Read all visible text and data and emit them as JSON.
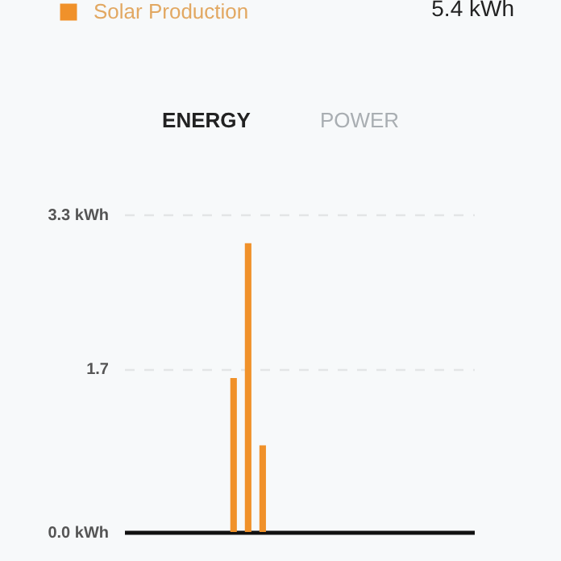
{
  "chart_data": {
    "type": "bar",
    "categories": [
      null,
      null,
      null,
      null,
      null,
      null,
      null,
      null,
      null,
      null,
      null,
      null,
      null,
      null,
      null,
      null,
      null,
      null,
      null,
      null,
      null,
      null,
      null,
      null
    ],
    "series": [
      {
        "name": "Solar Production",
        "color": "#f0912a",
        "values": [
          0,
          0,
          0,
          0,
          0,
          0,
          0,
          1.6,
          3.0,
          0.9,
          0,
          0,
          0,
          0,
          0,
          0,
          0,
          0,
          0,
          0,
          0,
          0,
          0,
          0
        ]
      }
    ],
    "ylim": [
      0,
      3.3
    ],
    "yticks": [
      {
        "value": 0,
        "label": "0.0 kWh"
      },
      1.7,
      {
        "value": 3.3,
        "label": "3.3 kWh"
      }
    ],
    "grid": "y",
    "legend": "top left",
    "tick_labels": "y",
    "annotations": [
      "5.4 kWh",
      "ENERGY",
      "POWER"
    ]
  }
}
